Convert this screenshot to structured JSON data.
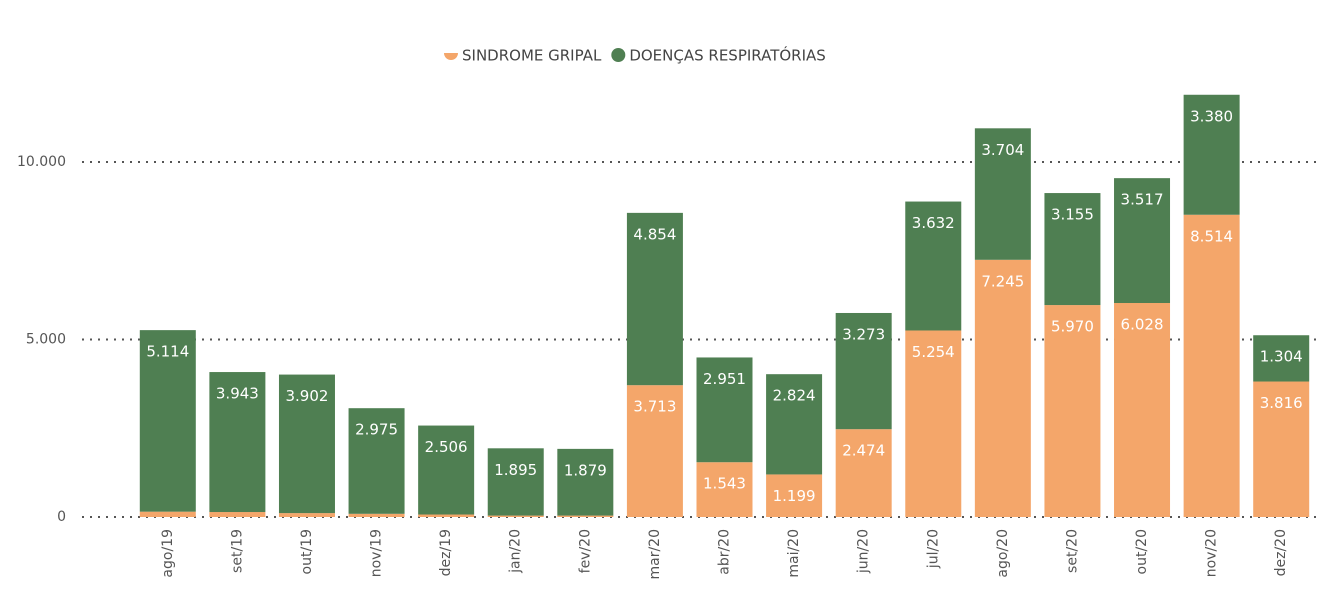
{
  "chart_data": {
    "type": "bar",
    "stacked": true,
    "categories": [
      "ago/19",
      "set/19",
      "out/19",
      "nov/19",
      "dez/19",
      "jan/20",
      "fev/20",
      "mar/20",
      "abr/20",
      "mai/20",
      "jun/20",
      "jul/20",
      "ago/20",
      "set/20",
      "out/20",
      "nov/20",
      "dez/20"
    ],
    "series": [
      {
        "name": "SINDROME GRIPAL",
        "color": "#f4a66a",
        "values": [
          150,
          140,
          110,
          90,
          70,
          40,
          40,
          3713,
          1543,
          1199,
          2474,
          5254,
          7245,
          5970,
          6028,
          8514,
          3816
        ],
        "value_labels": [
          null,
          null,
          null,
          null,
          null,
          null,
          null,
          "3.713",
          "1.543",
          "1.199",
          "2.474",
          "5.254",
          "7.245",
          "5.970",
          "6.028",
          "8.514",
          "3.816"
        ]
      },
      {
        "name": "DOENÇAS RESPIRATÓRIAS",
        "color": "#4f7f52",
        "values": [
          5114,
          3943,
          3902,
          2975,
          2506,
          1895,
          1879,
          4854,
          2951,
          2824,
          3273,
          3632,
          3704,
          3155,
          3517,
          3380,
          1304
        ],
        "value_labels": [
          "5.114",
          "3.943",
          "3.902",
          "2.975",
          "2.506",
          "1.895",
          "1.879",
          "4.854",
          "2.951",
          "2.824",
          "3.273",
          "3.632",
          "3.704",
          "3.155",
          "3.517",
          "3.380",
          "1.304"
        ]
      }
    ],
    "ylim": [
      0,
      12000
    ],
    "yticks": [
      0,
      {
        "value": 5000,
        "label": "5.000"
      },
      {
        "value": 10000,
        "label": "10.000"
      }
    ],
    "grid": true,
    "legend": "top"
  }
}
